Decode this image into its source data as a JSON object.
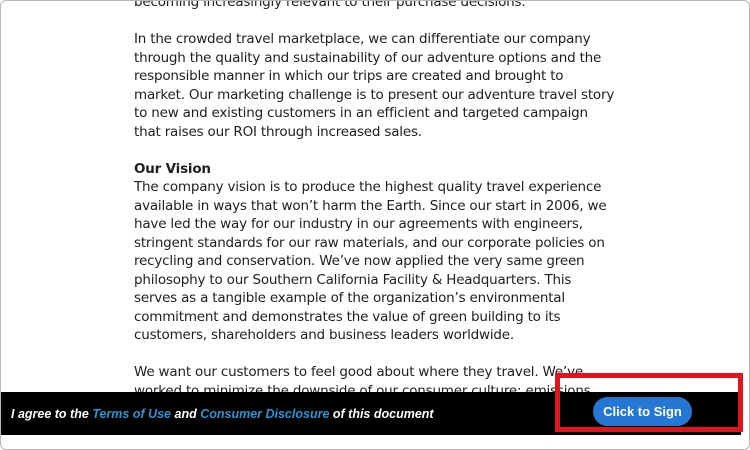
{
  "document": {
    "clipped_line": "becoming increasingly relevant to their purchase decisions.",
    "marketplace_paragraph": {
      "lines": [
        "In the crowded travel marketplace, we can differentiate our company",
        "through the quality and sustainability of our adventure options and the",
        "responsible manner in which our trips are created and brought to",
        "market. Our marketing challenge is to present our adventure travel story",
        "to new and existing customers in an efficient and targeted campaign",
        "that raises our ROI through increased sales."
      ]
    },
    "vision_heading": "Our Vision",
    "vision_paragraph": {
      "lines": [
        "The company vision is to produce the highest quality travel experience",
        "available in ways that won’t harm the Earth. Since our start in 2006, we",
        "have led the way for our industry in our agreements with engineers,",
        "stringent standards for our raw materials, and our corporate policies on",
        "recycling and conservation. We’ve now applied the very same green",
        "philosophy to our Southern California Facility & Headquarters.  This",
        "serves as a tangible example of the organization’s environmental",
        "commitment and demonstrates the value of green building to its",
        "customers, shareholders and business leaders worldwide."
      ]
    },
    "closing_paragraph": {
      "lines": [
        "We want our customers to feel good about where they travel. We’ve",
        "worked to minimize the downside of our consumer culture: emissions,"
      ]
    }
  },
  "sign_bar": {
    "agree_prefix": "I agree to the ",
    "terms_link": "Terms of Use",
    "and_text": " and ",
    "disclosure_link": "Consumer Disclosure",
    "agree_suffix": " of this document",
    "button_label": "Click to Sign"
  },
  "colors": {
    "button_blue": "#2478d4",
    "link_blue": "#2596d6",
    "annotation_red": "#e1131b",
    "bar_background": "#000000"
  }
}
